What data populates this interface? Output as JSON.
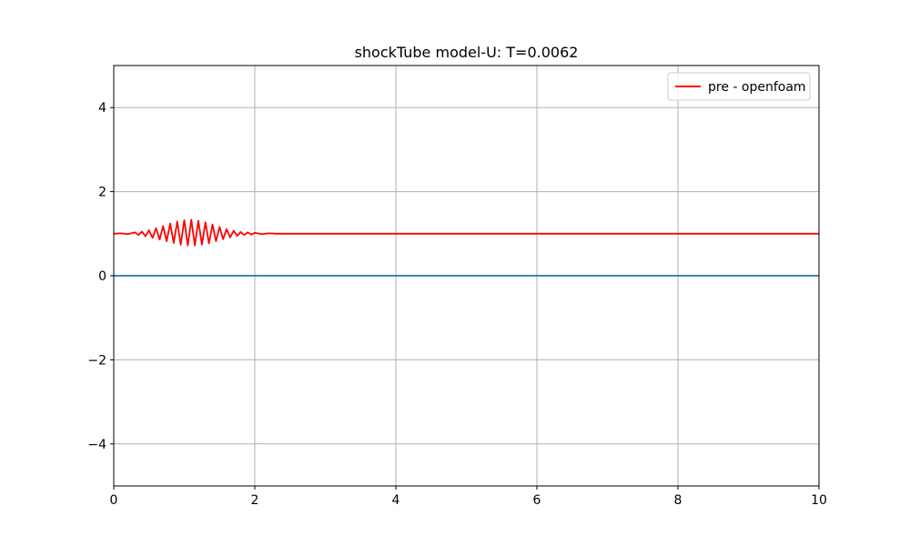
{
  "chart_data": {
    "type": "line",
    "title": "shockTube model-U: T=0.0062",
    "xlabel": "",
    "ylabel": "",
    "xlim": [
      0,
      10
    ],
    "ylim": [
      -5,
      5
    ],
    "xticks": [
      0,
      2,
      4,
      6,
      8,
      10
    ],
    "yticks": [
      -4,
      -2,
      0,
      2,
      4
    ],
    "xtick_labels": [
      "0",
      "2",
      "4",
      "6",
      "8",
      "10"
    ],
    "ytick_labels": [
      "−4",
      "−2",
      "0",
      "2",
      "4"
    ],
    "grid": true,
    "legend_position": "top-right",
    "series": [
      {
        "name": "pre - openfoam",
        "color": "#ff0000",
        "in_legend": true,
        "x": [
          0,
          0.1,
          0.2,
          0.3,
          0.35,
          0.4,
          0.45,
          0.5,
          0.55,
          0.6,
          0.65,
          0.7,
          0.75,
          0.8,
          0.85,
          0.9,
          0.95,
          1.0,
          1.05,
          1.1,
          1.15,
          1.2,
          1.25,
          1.3,
          1.35,
          1.4,
          1.45,
          1.5,
          1.55,
          1.6,
          1.65,
          1.7,
          1.75,
          1.8,
          1.85,
          1.9,
          1.95,
          2.0,
          2.1,
          2.2,
          2.3,
          2.4,
          3,
          4,
          5,
          6,
          7,
          8,
          9,
          10
        ],
        "y": [
          1.0,
          1.01,
          0.99,
          1.03,
          0.97,
          1.05,
          0.94,
          1.08,
          0.9,
          1.13,
          0.86,
          1.18,
          0.82,
          1.24,
          0.78,
          1.29,
          0.74,
          1.32,
          0.72,
          1.33,
          0.72,
          1.31,
          0.74,
          1.27,
          0.77,
          1.22,
          0.82,
          1.16,
          0.87,
          1.11,
          0.91,
          1.07,
          0.95,
          1.04,
          0.97,
          1.03,
          0.98,
          1.02,
          0.99,
          1.01,
          1.0,
          1.0,
          1.0,
          1.0,
          1.0,
          1.0,
          1.0,
          1.0,
          1.0,
          1.0
        ]
      },
      {
        "name": "",
        "color": "#1f77b4",
        "in_legend": false,
        "x": [
          0,
          10
        ],
        "y": [
          0,
          0
        ]
      }
    ]
  }
}
